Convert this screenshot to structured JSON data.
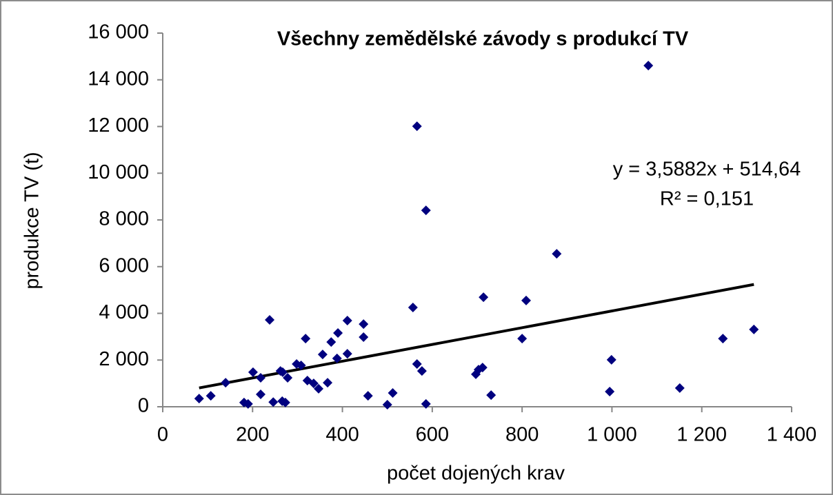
{
  "chart_data": {
    "type": "scatter",
    "title": "Všechny zemědělské závody s produkcí TV",
    "x_label": "počet dojených krav",
    "y_label": "produkce TV (t)",
    "color": "#00007f",
    "x": [
      81,
      107,
      140,
      181,
      190,
      201,
      218,
      218,
      238,
      246,
      262,
      266,
      273,
      278,
      267,
      298,
      308,
      318,
      322,
      336,
      347,
      356,
      367,
      375,
      388,
      390,
      411,
      411,
      447,
      447,
      457,
      500,
      512,
      557,
      566,
      566,
      577,
      586,
      586,
      697,
      703,
      712,
      714,
      731,
      800,
      809,
      877,
      995,
      999,
      1081,
      1151,
      1247,
      1316
    ],
    "values": [
      350,
      470,
      1030,
      180,
      120,
      1480,
      1240,
      530,
      3720,
      200,
      1530,
      240,
      180,
      1240,
      1480,
      1830,
      1770,
      2920,
      1120,
      1000,
      770,
      2240,
      1030,
      2770,
      2070,
      3160,
      3690,
      2270,
      3540,
      2980,
      470,
      90,
      590,
      4250,
      1830,
      12010,
      1530,
      8410,
      120,
      1390,
      1590,
      1680,
      4690,
      500,
      2920,
      4550,
      6550,
      650,
      2010,
      14610,
      800,
      2920,
      3310
    ],
    "xlim": [
      0,
      1400
    ],
    "xticks": [
      0,
      200,
      400,
      600,
      800,
      {
        "value": 1000,
        "label": "1 000"
      },
      {
        "value": 1200,
        "label": "1 200"
      },
      {
        "value": 1400,
        "label": "1 400"
      }
    ],
    "ylim": [
      0,
      16000
    ],
    "yticks": [
      0,
      {
        "value": 2000,
        "label": "2 000"
      },
      {
        "value": 4000,
        "label": "4 000"
      },
      {
        "value": 6000,
        "label": "6 000"
      },
      {
        "value": 8000,
        "label": "8 000"
      },
      {
        "value": 10000,
        "label": "10 000"
      },
      {
        "value": 12000,
        "label": "12 000"
      },
      {
        "value": 14000,
        "label": "14 000"
      },
      {
        "value": 16000,
        "label": "16 000"
      }
    ],
    "trendline": {
      "slope": 3.5882,
      "intercept": 514.64,
      "color": "#000000",
      "equation": "y = 3,5882x + 514,64",
      "r2": "R² = 0,151"
    }
  }
}
